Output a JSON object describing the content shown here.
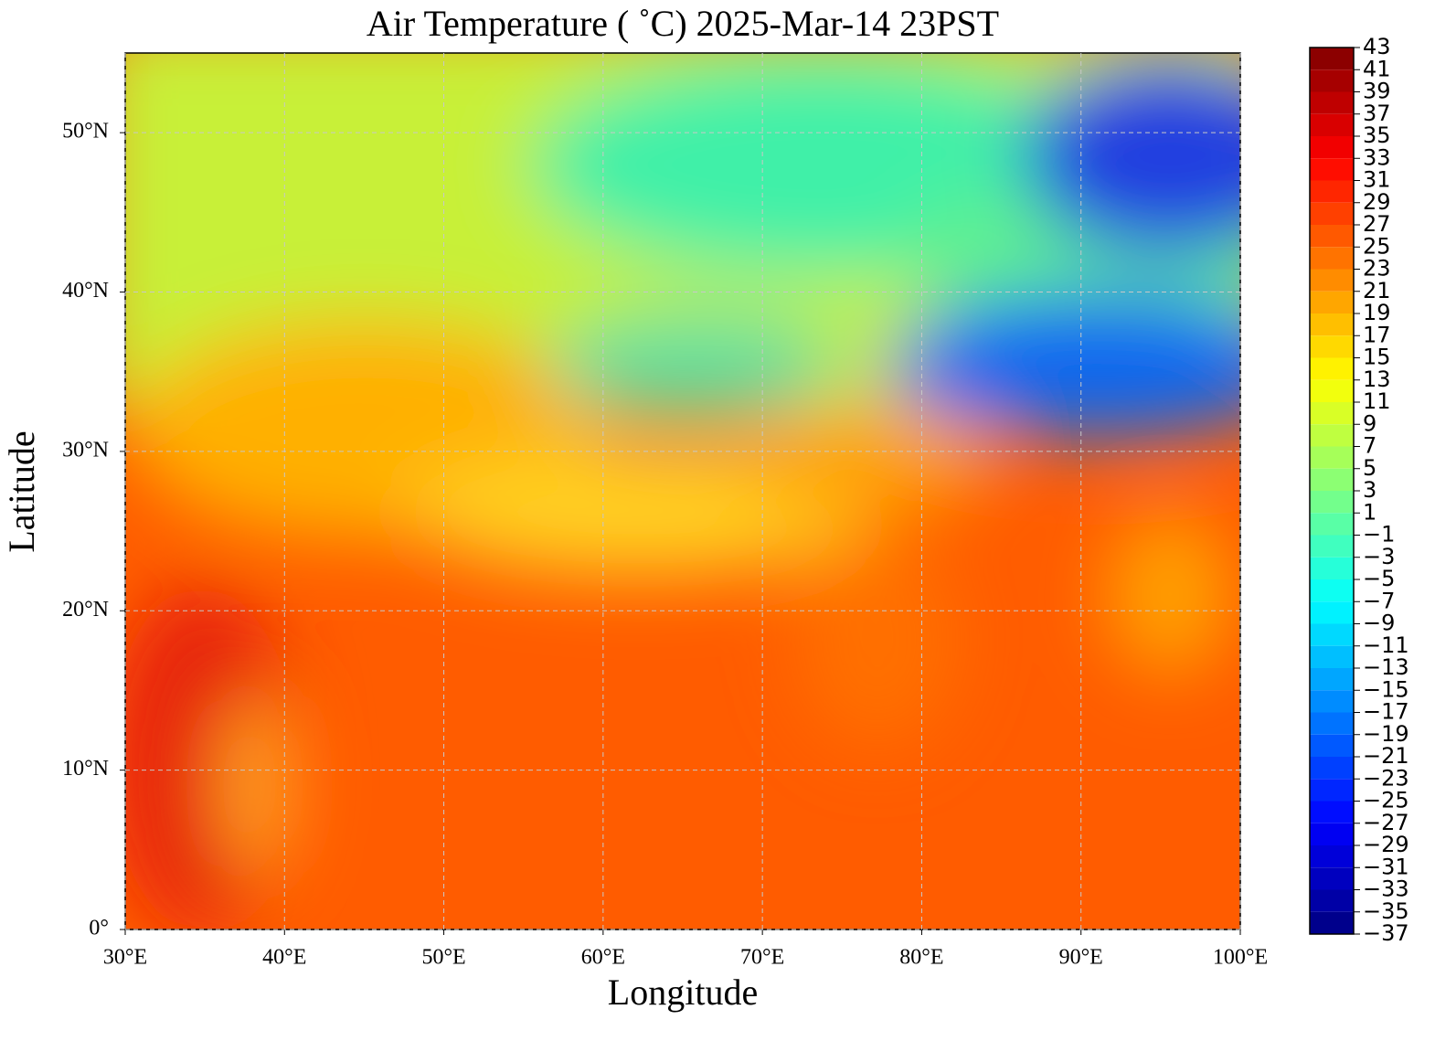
{
  "map": {
    "title": "Air Temperature ( ˚C)  2025-Mar-14 23PST",
    "xlabel": "Longitude",
    "ylabel": "Latitude",
    "xlim": [
      30,
      100
    ],
    "ylim": [
      0,
      55
    ],
    "xticks": [
      {
        "value": 30,
        "label": "30°E"
      },
      {
        "value": 40,
        "label": "40°E"
      },
      {
        "value": 50,
        "label": "50°E"
      },
      {
        "value": 60,
        "label": "60°E"
      },
      {
        "value": 70,
        "label": "70°E"
      },
      {
        "value": 80,
        "label": "80°E"
      },
      {
        "value": 90,
        "label": "90°E"
      },
      {
        "value": 100,
        "label": "100°E"
      }
    ],
    "yticks": [
      {
        "value": 0,
        "label": "0°"
      },
      {
        "value": 10,
        "label": "10°N"
      },
      {
        "value": 20,
        "label": "20°N"
      },
      {
        "value": 30,
        "label": "30°N"
      },
      {
        "value": 40,
        "label": "40°N"
      },
      {
        "value": 50,
        "label": "50°N"
      }
    ],
    "grid": true,
    "colorbar": {
      "lim": [
        -37,
        43
      ],
      "colormap": "jet",
      "ticks": [
        43,
        41,
        39,
        37,
        35,
        33,
        31,
        29,
        27,
        25,
        23,
        21,
        19,
        17,
        15,
        13,
        11,
        9,
        7,
        5,
        3,
        1,
        {
          "value": -1,
          "label": "−1"
        },
        {
          "value": -3,
          "label": "−3"
        },
        {
          "value": -5,
          "label": "−5"
        },
        {
          "value": -7,
          "label": "−7"
        },
        {
          "value": -9,
          "label": "−9"
        },
        {
          "value": -11,
          "label": "−11"
        },
        {
          "value": -13,
          "label": "−13"
        },
        {
          "value": -15,
          "label": "−15"
        },
        {
          "value": -17,
          "label": "−17"
        },
        {
          "value": -19,
          "label": "−19"
        },
        {
          "value": -21,
          "label": "−21"
        },
        {
          "value": -23,
          "label": "−23"
        },
        {
          "value": -25,
          "label": "−25"
        },
        {
          "value": -27,
          "label": "−27"
        },
        {
          "value": -29,
          "label": "−29"
        },
        {
          "value": -31,
          "label": "−31"
        },
        {
          "value": -33,
          "label": "−33"
        },
        {
          "value": -35,
          "label": "−35"
        },
        {
          "value": -37,
          "label": "−37"
        }
      ]
    }
  }
}
